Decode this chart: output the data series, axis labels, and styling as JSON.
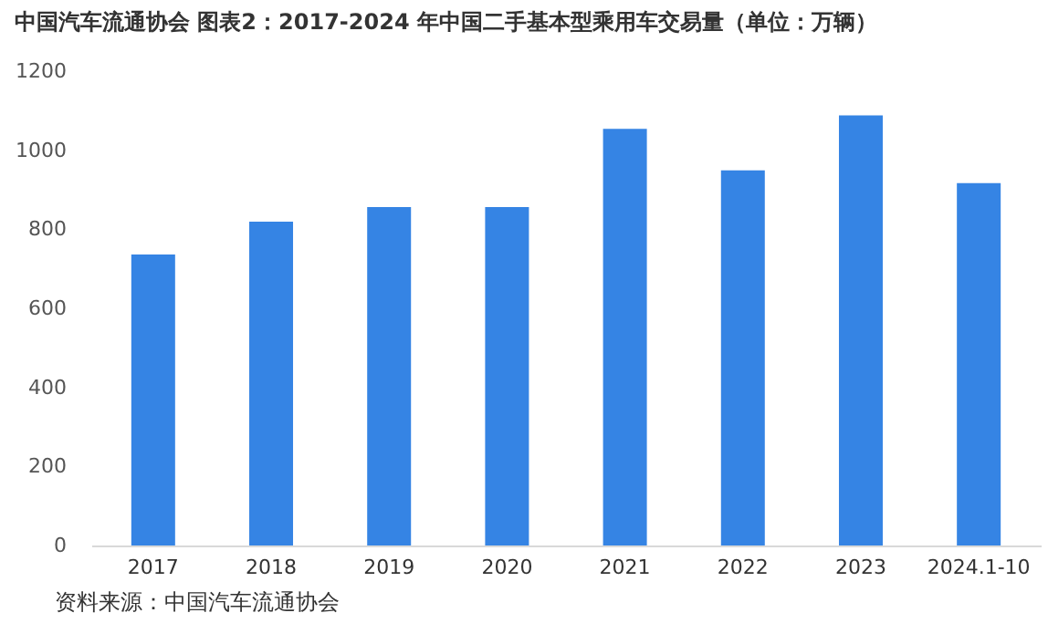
{
  "chart_data": {
    "type": "bar",
    "title": "中国汽车流通协会 图表2：2017-2024 年中国二手基本型乘用车交易量（单位：万辆）",
    "categories": [
      "2017",
      "2018",
      "2019",
      "2020",
      "2021",
      "2022",
      "2023",
      "2024.1-10"
    ],
    "values": [
      736,
      819,
      856,
      856,
      1054,
      949,
      1088,
      917
    ],
    "color": "#3584e4",
    "ylim": [
      0,
      1200
    ],
    "yticks": [
      0,
      200,
      400,
      600,
      800,
      1000,
      1200
    ],
    "grid": false,
    "annotations": [
      "资料来源：中国汽车流通协会"
    ]
  }
}
